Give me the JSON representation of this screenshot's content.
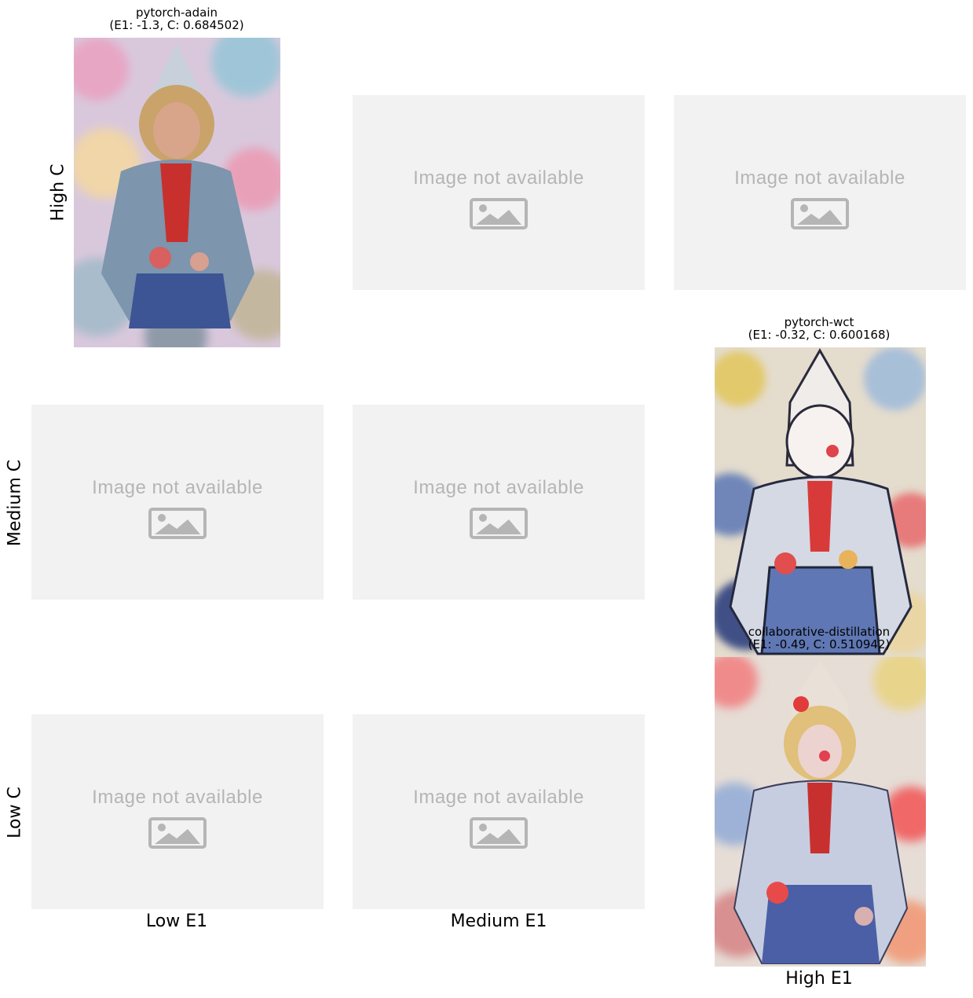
{
  "row_labels": [
    "High C",
    "Medium C",
    "Low C"
  ],
  "col_labels": [
    "Low E1",
    "Medium E1",
    "High E1"
  ],
  "placeholder_text": "Image not available",
  "panels": {
    "adain": {
      "line1": "pytorch-adain",
      "line2": "(E1: -1.3, C: 0.684502)"
    },
    "wct": {
      "line1": "pytorch-wct",
      "line2": "(E1: -0.32, C: 0.600168)"
    },
    "collab": {
      "line1": "collaborative-distillation",
      "line2": "(E1: -0.49, C: 0.510942)"
    }
  },
  "colors": {
    "placeholder_bg": "#f2f2f2",
    "placeholder_fg": "#b5b5b5"
  }
}
